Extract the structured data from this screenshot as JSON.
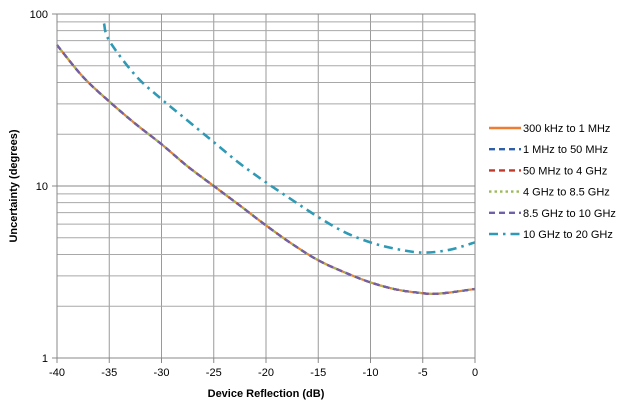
{
  "chart_data": {
    "type": "line",
    "title": "",
    "xlabel": "Device Reflection (dB)",
    "ylabel": "Uncertainty (degrees)",
    "xlim": [
      -40,
      0
    ],
    "ylim": [
      1,
      100
    ],
    "yscale": "log",
    "grid": true,
    "legend_position": "right",
    "xticks": [
      "-40",
      "-35",
      "-30",
      "-25",
      "-20",
      "-15",
      "-10",
      "-5",
      "0"
    ],
    "yticks": [
      "1",
      "10",
      "100"
    ],
    "x": [
      -40,
      -37.5,
      -35,
      -32.5,
      -30,
      -27.5,
      -25,
      -22.5,
      -20,
      -17.5,
      -15,
      -12.5,
      -10,
      -7.5,
      -5,
      -4,
      -2.5,
      0
    ],
    "series": [
      {
        "name": "300 kHz to 1 MHz",
        "color": "#ED7D31",
        "dash": "solid",
        "values": [
          66,
          43,
          31,
          23,
          17.5,
          13,
          10,
          7.7,
          5.9,
          4.6,
          3.7,
          3.15,
          2.75,
          2.5,
          2.38,
          2.36,
          2.4,
          2.52
        ]
      },
      {
        "name": "1 MHz to 50 MHz",
        "color": "#2E5FA8",
        "dash": "dash",
        "values": [
          66,
          43,
          31,
          23,
          17.5,
          13,
          10,
          7.7,
          5.9,
          4.6,
          3.7,
          3.15,
          2.75,
          2.5,
          2.38,
          2.36,
          2.4,
          2.52
        ]
      },
      {
        "name": "50 MHz to 4 GHz",
        "color": "#C0392B",
        "dash": "dash",
        "values": [
          66,
          43,
          31,
          23,
          17.5,
          13,
          10,
          7.7,
          5.9,
          4.6,
          3.7,
          3.15,
          2.75,
          2.5,
          2.38,
          2.36,
          2.4,
          2.52
        ]
      },
      {
        "name": "4 GHz to 8.5 GHz",
        "color": "#9BBB59",
        "dash": "dot",
        "values": [
          66,
          43,
          31,
          23,
          17.5,
          13,
          10,
          7.7,
          5.9,
          4.6,
          3.7,
          3.15,
          2.75,
          2.5,
          2.38,
          2.36,
          2.4,
          2.52
        ]
      },
      {
        "name": "8.5 GHz to 10 GHz",
        "color": "#7060A8",
        "dash": "dash",
        "values": [
          66,
          43,
          31,
          23,
          17.5,
          13,
          10,
          7.7,
          5.9,
          4.6,
          3.7,
          3.15,
          2.75,
          2.5,
          2.38,
          2.36,
          2.4,
          2.52
        ]
      },
      {
        "name": "10 GHz to 20 GHz",
        "color": "#2F9AB5",
        "dash": "dashdot",
        "x": [
          -35.5,
          -35,
          -32.5,
          -30,
          -27.5,
          -25,
          -22.5,
          -20,
          -17.5,
          -15,
          -12.5,
          -10,
          -7.5,
          -5,
          -2.5,
          0
        ],
        "values": [
          88,
          70,
          44,
          32,
          24,
          18,
          13.5,
          10.5,
          8.3,
          6.6,
          5.4,
          4.7,
          4.3,
          4.1,
          4.25,
          4.7
        ]
      }
    ]
  }
}
